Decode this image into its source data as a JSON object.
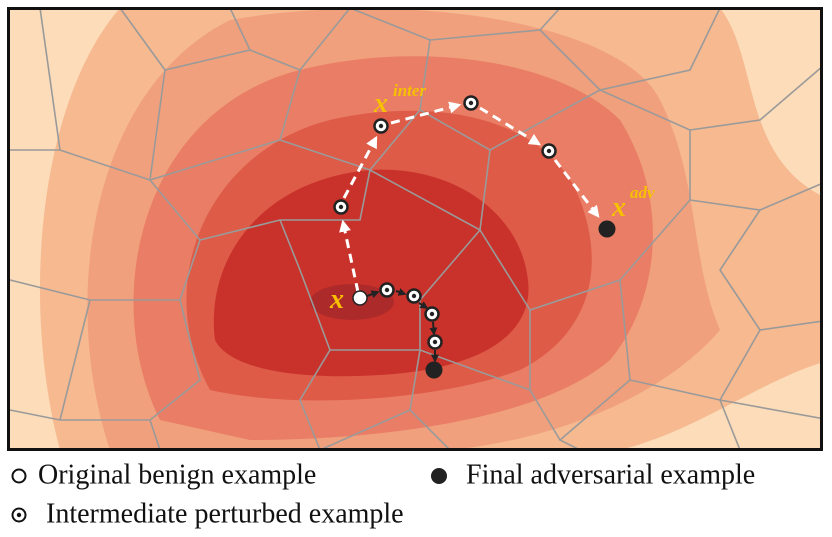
{
  "labels": {
    "origin": "x",
    "inter_base": "x",
    "inter_sup": "inter",
    "adv_base": "x",
    "adv_sup": "adv"
  },
  "legend": [
    "Original benign example",
    "Final adversarial example",
    "Intermediate perturbed example"
  ]
}
